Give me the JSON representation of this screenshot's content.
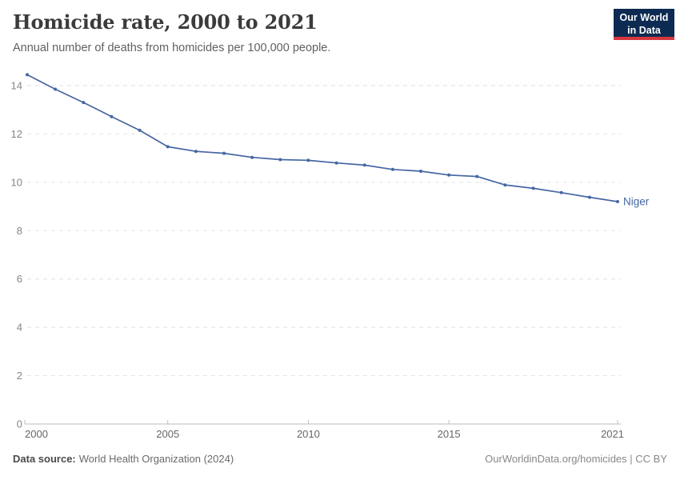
{
  "header": {
    "title": "Homicide rate, 2000 to 2021",
    "subtitle": "Annual number of deaths from homicides per 100,000 people."
  },
  "logo": {
    "line1": "Our World",
    "line2": "in Data",
    "bg_color": "#0d2b52",
    "accent_color": "#d7373f"
  },
  "chart_data": {
    "type": "line",
    "title": "Homicide rate, 2000 to 2021",
    "subtitle": "Annual number of deaths from homicides per 100,000 people.",
    "x": [
      2000,
      2001,
      2002,
      2003,
      2004,
      2005,
      2006,
      2007,
      2008,
      2009,
      2010,
      2011,
      2012,
      2013,
      2014,
      2015,
      2016,
      2017,
      2018,
      2019,
      2020,
      2021
    ],
    "series": [
      {
        "name": "Niger",
        "color": "#4566a3",
        "values": [
          14.45,
          13.85,
          13.3,
          12.72,
          12.15,
          11.47,
          11.28,
          11.2,
          11.03,
          10.94,
          10.91,
          10.8,
          10.71,
          10.53,
          10.46,
          10.3,
          10.24,
          9.89,
          9.75,
          9.57,
          9.38,
          9.2
        ]
      }
    ],
    "xlabel": "",
    "ylabel": "",
    "ylim": [
      0,
      14.6
    ],
    "yticks": [
      0,
      2,
      4,
      6,
      8,
      10,
      12,
      14
    ],
    "xticks": [
      2000,
      2005,
      2010,
      2015,
      2021
    ],
    "grid": "horizontal-dashed",
    "legend_position": "end-of-line",
    "end_label": "Niger",
    "grid_color": "#e2e2e2",
    "axis_color": "#bdbdbd",
    "ytick_label_color": "#858585",
    "xtick_label_color": "#666666"
  },
  "footer": {
    "source_label": "Data source:",
    "source_text": "World Health Organization (2024)",
    "credit": "OurWorldinData.org/homicides | CC BY"
  }
}
